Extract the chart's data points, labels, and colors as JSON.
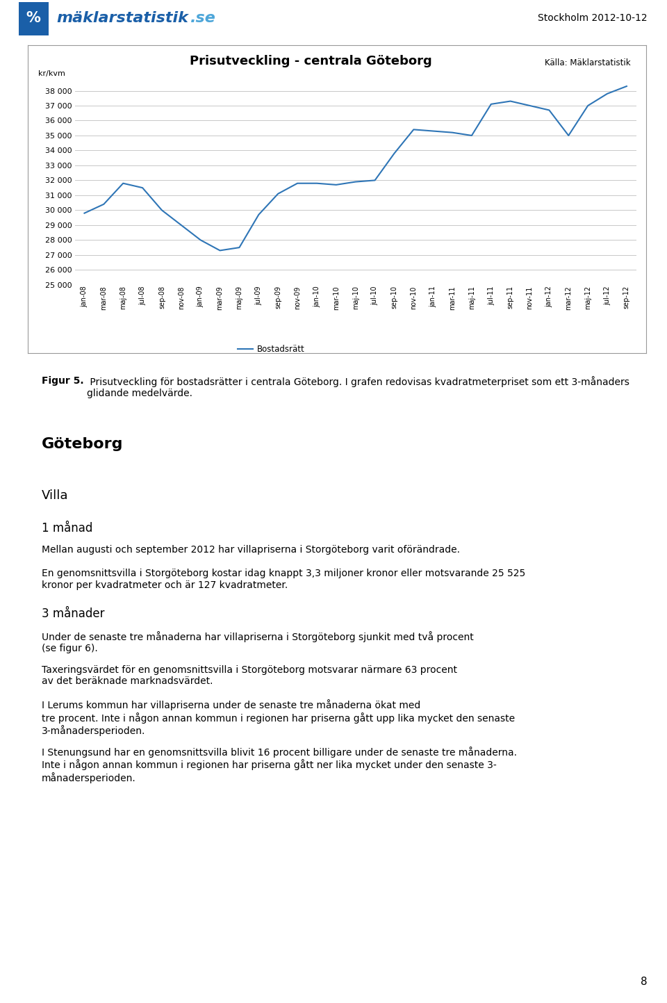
{
  "title": "Prisutveckling - centrala Göteborg",
  "source": "Källa: Mäklarstatistik",
  "ylabel": "kr/kvm",
  "legend_label": "Bostadsrätt",
  "header_date": "Stockholm 2012-10-12",
  "ylim": [
    25000,
    38500
  ],
  "yticks": [
    25000,
    26000,
    27000,
    28000,
    29000,
    30000,
    31000,
    32000,
    33000,
    34000,
    35000,
    36000,
    37000,
    38000
  ],
  "x_labels": [
    "jan-08",
    "mar-08",
    "maj-08",
    "jul-08",
    "sep-08",
    "nov-08",
    "jan-09",
    "mar-09",
    "maj-09",
    "jul-09",
    "sep-09",
    "nov-09",
    "jan-10",
    "mar-10",
    "maj-10",
    "jul-10",
    "sep-10",
    "nov-10",
    "jan-11",
    "mar-11",
    "maj-11",
    "jul-11",
    "sep-11",
    "nov-11",
    "jan-12",
    "mar-12",
    "maj-12",
    "jul-12",
    "sep-12"
  ],
  "y_values": [
    29800,
    30400,
    31800,
    31500,
    30000,
    29000,
    28000,
    27300,
    27500,
    29700,
    31100,
    31800,
    31800,
    31700,
    31900,
    32000,
    33800,
    35400,
    35300,
    35200,
    35000,
    37100,
    37300,
    37000,
    36700,
    35000,
    37000,
    37800,
    38300
  ],
  "line_color": "#2E75B6",
  "chart_bg": "#ffffff",
  "grid_color": "#c8c8c8",
  "fig_bg": "#ffffff",
  "figsize": [
    9.6,
    14.43
  ],
  "chart_title_fontsize": 13,
  "page_number": "8",
  "logo_blue_dark": "#1a5fa8",
  "logo_blue_light": "#4da6d9",
  "caption_bold": "Figur 5.",
  "caption_normal": " Prisutveckling för bostadsrätter i centrala Göteborg. I grafen redovisas kvadratmeterpriset som ett 3-månaders glidande medelvärde.",
  "section_goteborg": "Göteborg",
  "section_villa": "Villa",
  "section_1manad": "1 månad",
  "para_1manad_1": "Mellan augusti och september 2012 har villapriserna i Storgöteborg varit oförändrade.",
  "para_1manad_2": "En genomsnittsvilla i Storgöteborg kostar idag knappt 3,3 miljoner kronor eller motsvarande 25 525 kronor per kvadratmeter och är 127 kvadratmeter.",
  "section_3manader": "3 månader",
  "para_3manad_1": "Under de senaste tre månaderna har villapriserna i Storgöteborg sjunkit med två procent (se figur 6).",
  "para_3manad_2": "Taxeringsvärdet för en genomsnittsvilla i Storgöteborg motsvarar närmare 63 procent av det beräknade marknadsvärdet.",
  "para_3manad_3": "I Lerums kommun har villapriserna under de senaste tre månaderna ökat med tre procent. Inte i någon annan kommun i regionen har priserna gått upp lika mycket den senaste 3-månadersperioden.",
  "para_3manad_4": "I Stenungsund har en genomsnittsvilla blivit 16 procent billigare under de senaste tre månaderna. Inte i någon annan kommun i regionen har priserna gått ner lika mycket under den senaste 3-månadersperioden."
}
